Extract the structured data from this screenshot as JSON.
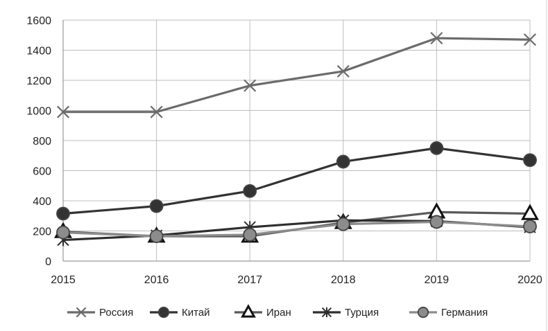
{
  "chart_data": {
    "type": "line",
    "x": [
      "2015",
      "2016",
      "2017",
      "2018",
      "2019",
      "2020"
    ],
    "ylim": [
      0,
      1600
    ],
    "yticks": [
      "0",
      "200",
      "400",
      "600",
      "800",
      "1000",
      "1200",
      "1400",
      "1600"
    ],
    "grid": true,
    "legend_position": "bottom",
    "series": [
      {
        "name": "Россия",
        "values": [
          990,
          990,
          1165,
          1260,
          1480,
          1470
        ],
        "marker": "x",
        "color": "#6b6b6b"
      },
      {
        "name": "Китай",
        "values": [
          315,
          365,
          465,
          660,
          750,
          670
        ],
        "marker": "circle",
        "color": "#333333"
      },
      {
        "name": "Иран",
        "values": [
          195,
          165,
          165,
          255,
          325,
          315
        ],
        "marker": "triangle",
        "color": "#595959"
      },
      {
        "name": "Турция",
        "values": [
          140,
          170,
          225,
          270,
          265,
          225
        ],
        "marker": "star",
        "color": "#2e2e2e"
      },
      {
        "name": "Германия",
        "values": [
          190,
          165,
          175,
          245,
          260,
          230
        ],
        "marker": "circle",
        "color": "#8c8c8c"
      }
    ]
  }
}
